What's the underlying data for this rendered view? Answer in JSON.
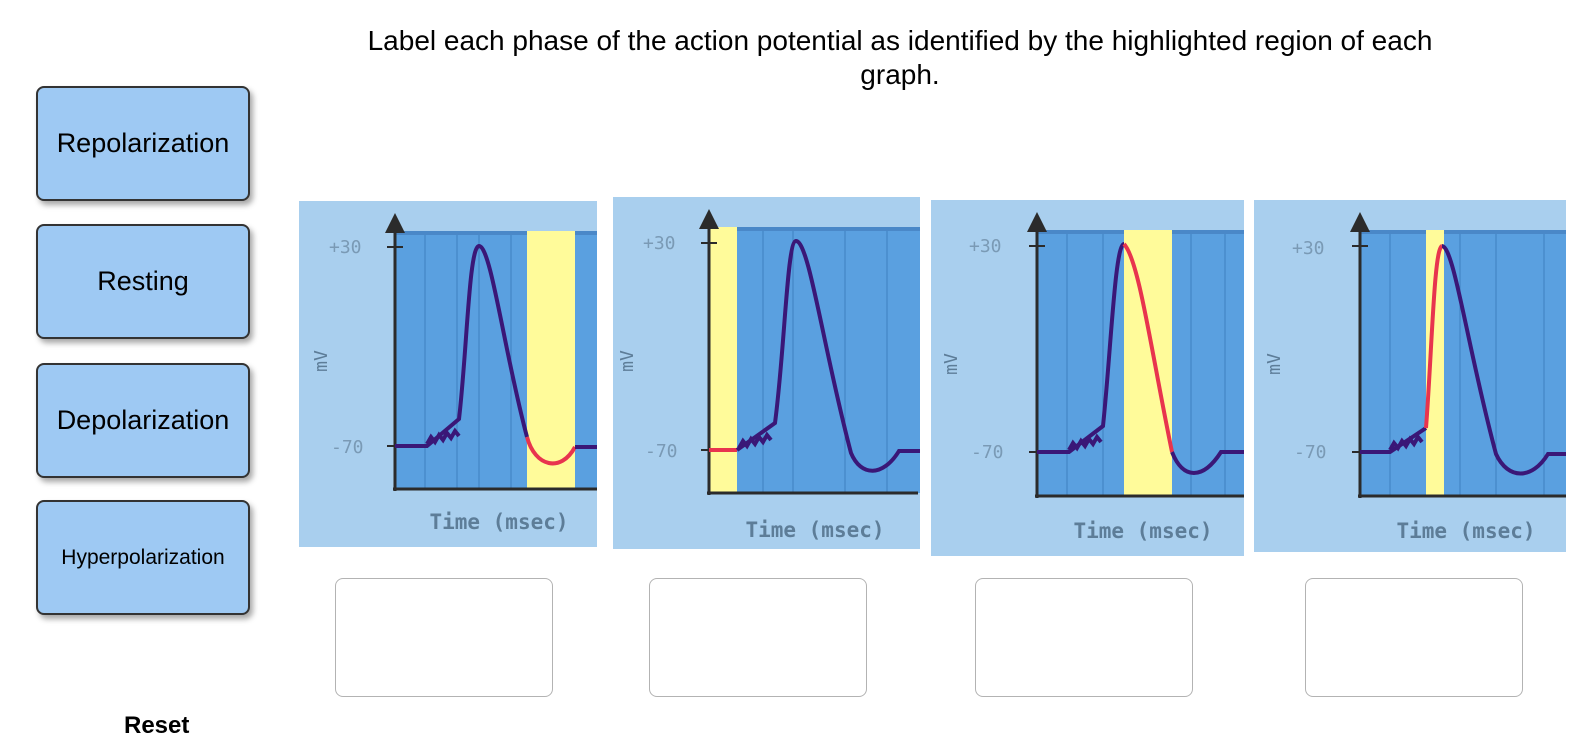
{
  "instruction": "Label each phase of the action potential as identified by the highlighted region of each graph.",
  "labels": [
    {
      "text": "Repolarization"
    },
    {
      "text": "Resting"
    },
    {
      "text": "Depolarization"
    },
    {
      "text": "Hyperpolarization"
    }
  ],
  "graphs": [
    {
      "highlight": "hyperpolarization undershoot",
      "y_top_label": "+30",
      "y_bottom_label": "-70",
      "y_axis_label": "mV",
      "x_axis_label": "Time (msec)"
    },
    {
      "highlight": "resting baseline",
      "y_top_label": "+30",
      "y_bottom_label": "-70",
      "y_axis_label": "mV",
      "x_axis_label": "Time (msec)"
    },
    {
      "highlight": "falling phase",
      "y_top_label": "+30",
      "y_bottom_label": "-70",
      "y_axis_label": "mV",
      "x_axis_label": "Time (msec)"
    },
    {
      "highlight": "rising phase",
      "y_top_label": "+30",
      "y_bottom_label": "-70",
      "y_axis_label": "mV",
      "x_axis_label": "Time (msec)"
    }
  ],
  "colors": {
    "tile_bg": "#9ec9f3",
    "graph_outer": "#a9cfee",
    "graph_inner": "#5aa0e0",
    "highlight": "#fffb9a",
    "trace": "#3a1777",
    "trace_highlight": "#e8344e"
  },
  "reset_label": "Reset"
}
